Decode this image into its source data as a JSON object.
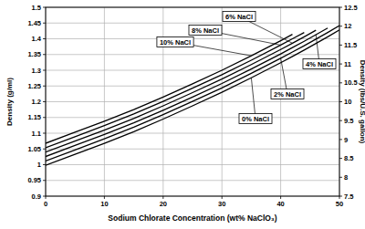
{
  "chart_data": {
    "type": "line",
    "x_label": "Sodium Chlorate Concentration (wt% NaClO₃)",
    "y_label": "Density (g/ml)",
    "y2_label": "Density (lbs/U.S. gallon)",
    "x": [
      0,
      5,
      10,
      15,
      20,
      25,
      30,
      35,
      40,
      42,
      44,
      46,
      48,
      50
    ],
    "series": [
      {
        "name": "0% NaCl",
        "color": "#000000",
        "values": [
          0.998,
          1.033,
          1.068,
          1.105,
          1.145,
          1.187,
          1.23,
          1.276,
          1.324,
          1.344,
          1.364,
          1.385,
          1.406,
          1.428
        ]
      },
      {
        "name": "2% NaCl",
        "color": "#000000",
        "values": [
          1.012,
          1.047,
          1.082,
          1.119,
          1.159,
          1.201,
          1.244,
          1.29,
          1.338,
          1.358,
          1.378,
          1.399,
          1.42,
          1.442
        ]
      },
      {
        "name": "4% NaCl",
        "color": "#000000",
        "values": [
          1.026,
          1.061,
          1.096,
          1.133,
          1.173,
          1.215,
          1.258,
          1.304,
          1.352,
          1.372,
          1.392,
          1.413,
          1.434,
          null
        ]
      },
      {
        "name": "6% NaCl",
        "color": "#000000",
        "values": [
          1.04,
          1.075,
          1.11,
          1.147,
          1.187,
          1.229,
          1.272,
          1.318,
          1.366,
          1.386,
          1.406,
          1.427,
          null,
          null
        ]
      },
      {
        "name": "8% NaCl",
        "color": "#000000",
        "values": [
          1.054,
          1.089,
          1.124,
          1.161,
          1.201,
          1.243,
          1.286,
          1.332,
          1.38,
          1.4,
          1.42,
          null,
          null,
          null
        ]
      },
      {
        "name": "10% NaCl",
        "color": "#000000",
        "values": [
          1.068,
          1.103,
          1.138,
          1.175,
          1.215,
          1.257,
          1.3,
          1.346,
          1.394,
          1.414,
          null,
          null,
          null,
          null
        ]
      }
    ],
    "xlim": [
      0,
      50
    ],
    "xticks": [
      0,
      10,
      20,
      30,
      40,
      50
    ],
    "ylim": [
      0.9,
      1.5
    ],
    "yticks": [
      0.9,
      0.95,
      1,
      1.05,
      1.1,
      1.15,
      1.2,
      1.25,
      1.3,
      1.35,
      1.4,
      1.45,
      1.5
    ],
    "y2lim": [
      7.5,
      12.5
    ],
    "y2ticks": [
      7.5,
      8,
      8.5,
      9,
      9.5,
      10,
      10.5,
      11,
      11.5,
      12,
      12.5
    ],
    "grid": true
  }
}
